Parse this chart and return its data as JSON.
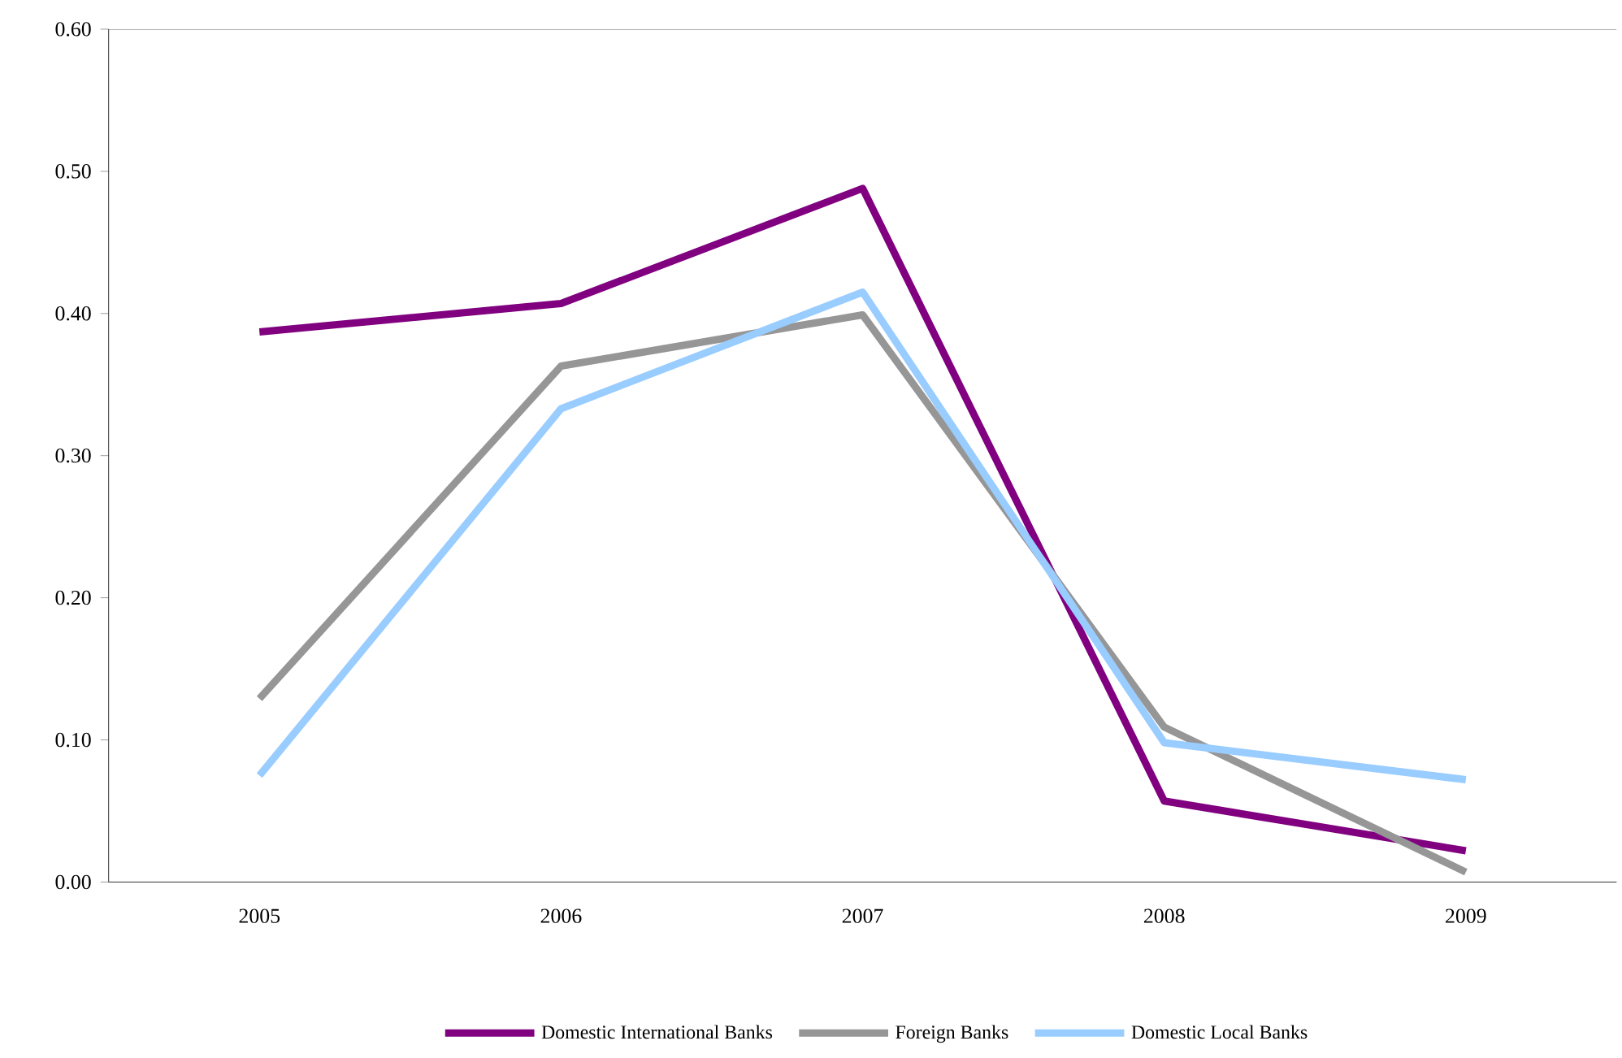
{
  "chart_data": {
    "type": "line",
    "categories": [
      "2005",
      "2006",
      "2007",
      "2008",
      "2009"
    ],
    "series": [
      {
        "name": "Domestic International Banks",
        "color": "#800080",
        "values": [
          0.387,
          0.407,
          0.488,
          0.057,
          0.022
        ]
      },
      {
        "name": "Foreign Banks",
        "color": "#969696",
        "values": [
          0.129,
          0.363,
          0.399,
          0.109,
          0.007
        ]
      },
      {
        "name": "Domestic Local Banks",
        "color": "#99ccff",
        "values": [
          0.075,
          0.333,
          0.415,
          0.098,
          0.072
        ]
      }
    ],
    "ylim": [
      0,
      0.6
    ],
    "yticks": [
      {
        "value": 0,
        "label": "0.00"
      },
      {
        "value": 0.1,
        "label": "0.10"
      },
      {
        "value": 0.2,
        "label": "0.20"
      },
      {
        "value": 0.3,
        "label": "0.30"
      },
      {
        "value": 0.4,
        "label": "0.40"
      },
      {
        "value": 0.5,
        "label": "0.50"
      },
      {
        "value": 0.6,
        "label": "0.60"
      }
    ],
    "grid": false,
    "legend": "bottom",
    "marker": "none",
    "line_style": "solid"
  }
}
